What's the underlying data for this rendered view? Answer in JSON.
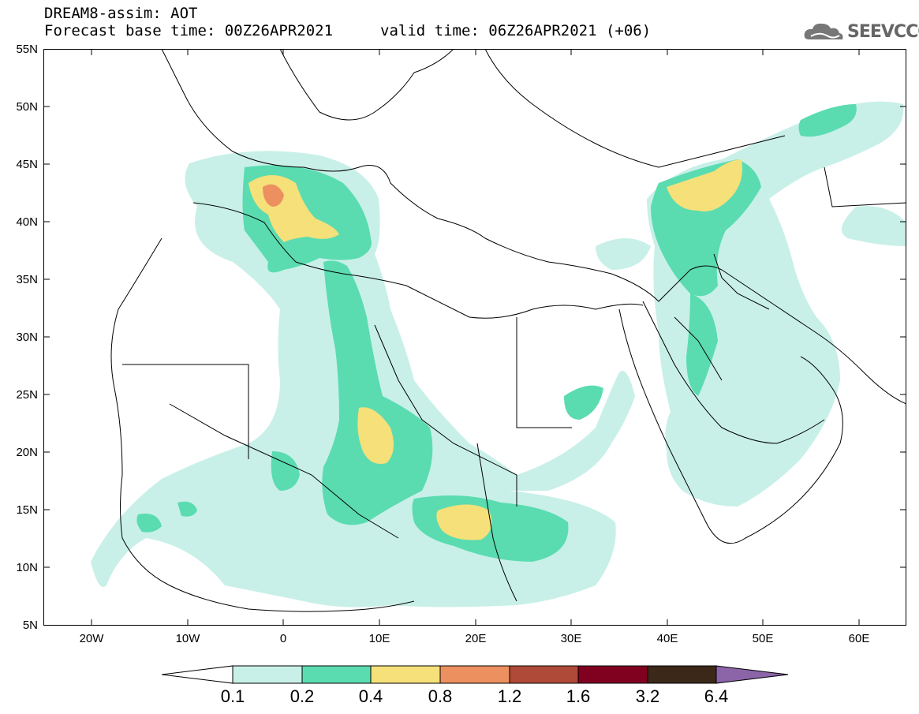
{
  "header": {
    "title_line1": "DREAM8-assim: AOT",
    "title_line2": "Forecast base time: 00Z26APR2021",
    "valid_time": "valid time: 06Z26APR2021 (+06)"
  },
  "logo": {
    "text": "SEEVCCC",
    "icon": "cloud-icon"
  },
  "axes": {
    "lat_labels": [
      "55N",
      "50N",
      "45N",
      "40N",
      "35N",
      "30N",
      "25N",
      "20N",
      "15N",
      "10N",
      "5N"
    ],
    "lon_labels": [
      "20W",
      "10W",
      "0",
      "10E",
      "20E",
      "30E",
      "40E",
      "50E",
      "60E"
    ]
  },
  "colorbar": {
    "labels": [
      "0.1",
      "0.2",
      "0.4",
      "0.8",
      "1.2",
      "1.6",
      "3.2",
      "6.4"
    ],
    "colors": [
      "#c8f0e8",
      "#5adcb0",
      "#f5e07a",
      "#ec9060",
      "#b04a38",
      "#800020",
      "#3c2818",
      "#8c64a8"
    ]
  }
}
